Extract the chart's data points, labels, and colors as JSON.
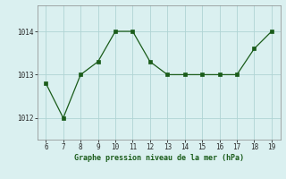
{
  "x": [
    6,
    7,
    8,
    9,
    10,
    11,
    12,
    13,
    14,
    15,
    16,
    17,
    18,
    19
  ],
  "y": [
    1012.8,
    1012.0,
    1013.0,
    1013.3,
    1014.0,
    1014.0,
    1013.3,
    1013.0,
    1013.0,
    1013.0,
    1013.0,
    1013.0,
    1013.6,
    1014.0
  ],
  "line_color": "#1a5c1a",
  "marker_color": "#1a5c1a",
  "bg_color": "#daf0f0",
  "grid_color": "#b0d4d4",
  "xlabel": "Graphe pression niveau de la mer (hPa)",
  "xlabel_color": "#1a5c1a",
  "ytick_labels": [
    "1012",
    "1013",
    "1014"
  ],
  "ytick_values": [
    1012,
    1013,
    1014
  ],
  "xlim": [
    5.5,
    19.5
  ],
  "ylim": [
    1011.5,
    1014.6
  ],
  "xtick_values": [
    6,
    7,
    8,
    9,
    10,
    11,
    12,
    13,
    14,
    15,
    16,
    17,
    18,
    19
  ]
}
